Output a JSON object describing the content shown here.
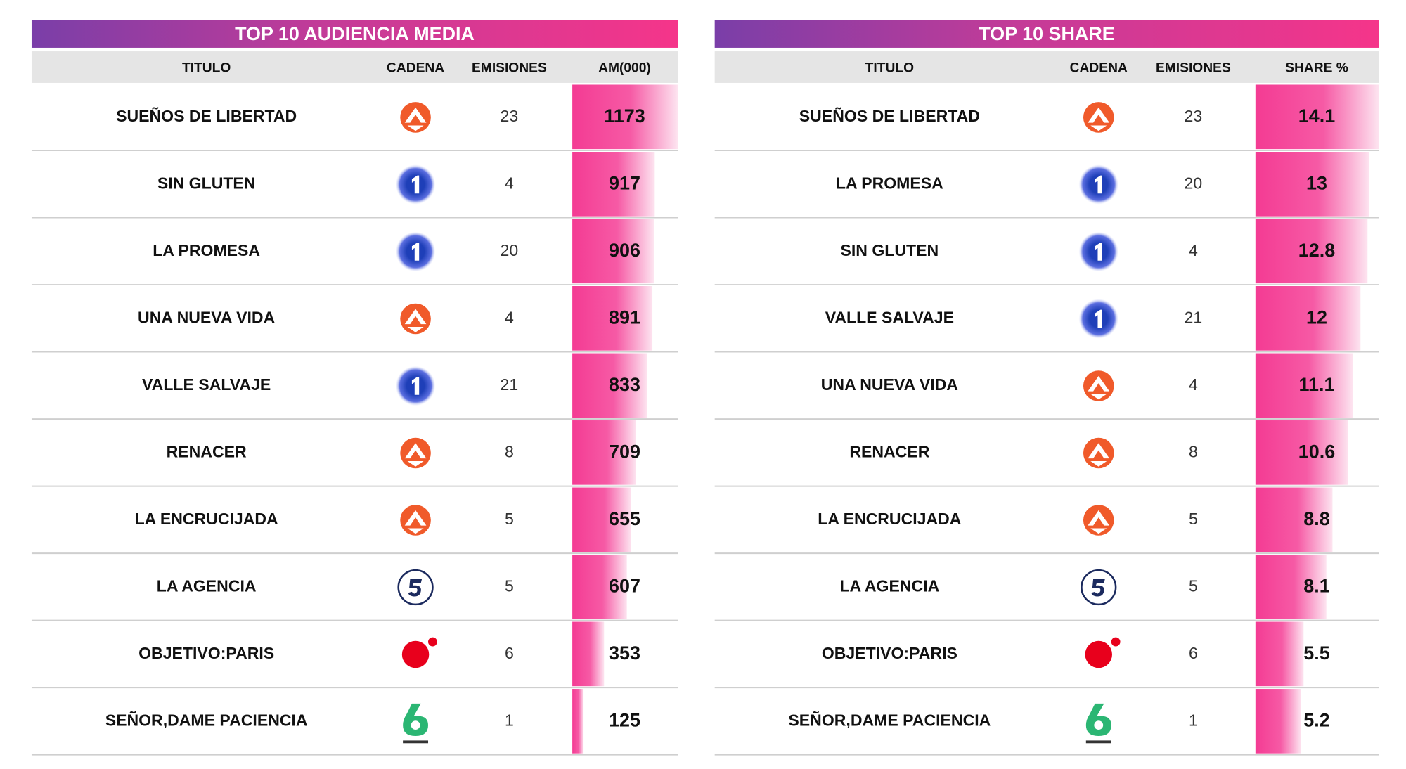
{
  "tables": [
    {
      "title": "TOP 10 AUDIENCIA MEDIA",
      "columns": [
        "TITULO",
        "CADENA",
        "EMISIONES",
        "AM(000)"
      ],
      "rows": [
        {
          "title": "SUEÑOS DE LIBERTAD",
          "logo": "antena3",
          "emissions": 23,
          "value": 1173
        },
        {
          "title": "SIN GLUTEN",
          "logo": "la1",
          "emissions": 4,
          "value": 917
        },
        {
          "title": "LA PROMESA",
          "logo": "la1",
          "emissions": 20,
          "value": 906
        },
        {
          "title": "UNA NUEVA VIDA",
          "logo": "antena3",
          "emissions": 4,
          "value": 891
        },
        {
          "title": "VALLE SALVAJE",
          "logo": "la1",
          "emissions": 21,
          "value": 833
        },
        {
          "title": "RENACER",
          "logo": "antena3",
          "emissions": 8,
          "value": 709
        },
        {
          "title": "LA ENCRUCIJADA",
          "logo": "antena3",
          "emissions": 5,
          "value": 655
        },
        {
          "title": "LA AGENCIA",
          "logo": "telecinco",
          "emissions": 5,
          "value": 607
        },
        {
          "title": "OBJETIVO:PARIS",
          "logo": "cuatro",
          "emissions": 6,
          "value": 353
        },
        {
          "title": "SEÑOR,DAME PACIENCIA",
          "logo": "lasexta",
          "emissions": 1,
          "value": 125
        }
      ]
    },
    {
      "title": "TOP 10 SHARE",
      "columns": [
        "TITULO",
        "CADENA",
        "EMISIONES",
        "SHARE %"
      ],
      "rows": [
        {
          "title": "SUEÑOS DE LIBERTAD",
          "logo": "antena3",
          "emissions": 23,
          "value": 14.1
        },
        {
          "title": "LA PROMESA",
          "logo": "la1",
          "emissions": 20,
          "value": 13
        },
        {
          "title": "SIN GLUTEN",
          "logo": "la1",
          "emissions": 4,
          "value": 12.8
        },
        {
          "title": "VALLE SALVAJE",
          "logo": "la1",
          "emissions": 21,
          "value": 12
        },
        {
          "title": "UNA NUEVA VIDA",
          "logo": "antena3",
          "emissions": 4,
          "value": 11.1
        },
        {
          "title": "RENACER",
          "logo": "antena3",
          "emissions": 8,
          "value": 10.6
        },
        {
          "title": "LA ENCRUCIJADA",
          "logo": "antena3",
          "emissions": 5,
          "value": 8.8
        },
        {
          "title": "LA AGENCIA",
          "logo": "telecinco",
          "emissions": 5,
          "value": 8.1
        },
        {
          "title": "OBJETIVO:PARIS",
          "logo": "cuatro",
          "emissions": 6,
          "value": 5.5
        },
        {
          "title": "SEÑOR,DAME PACIENCIA",
          "logo": "lasexta",
          "emissions": 1,
          "value": 5.2
        }
      ]
    }
  ]
}
